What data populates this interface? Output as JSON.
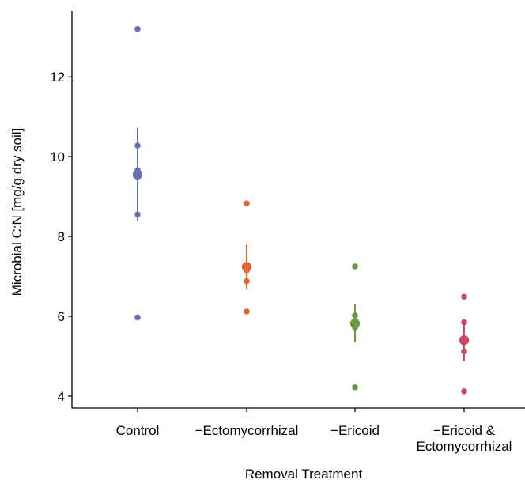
{
  "chart_data": {
    "type": "scatter",
    "xlabel": "Removal Treatment",
    "ylabel": "Microbial C:N [mg/g dry soil]",
    "categories": [
      "Control",
      "−Ectomycorrhizal",
      "−Ericoid",
      "−Ericoid &\nEctomycorrhizal"
    ],
    "yticks": [
      4,
      6,
      8,
      10,
      12
    ],
    "ylim": [
      3.7,
      13.65
    ],
    "grid": false,
    "legend": "none",
    "colors": [
      "#6470bc",
      "#e06633",
      "#6a9a44",
      "#c84a66"
    ],
    "series": [
      {
        "category": "Control",
        "points": [
          13.2,
          10.28,
          9.66,
          9.52,
          8.55,
          5.97
        ],
        "mean": 9.55,
        "error_low": 8.4,
        "error_high": 10.72
      },
      {
        "category": "−Ectomycorrhizal",
        "points": [
          8.83,
          7.25,
          7.15,
          6.88,
          6.12
        ],
        "mean": 7.24,
        "error_low": 6.68,
        "error_high": 7.8
      },
      {
        "category": "−Ericoid",
        "points": [
          7.25,
          6.02,
          5.88,
          5.8,
          5.72,
          4.22
        ],
        "mean": 5.82,
        "error_low": 5.35,
        "error_high": 6.3
      },
      {
        "category": "−Ericoid & Ectomycorrhizal",
        "points": [
          6.49,
          5.85,
          5.12,
          4.12
        ],
        "mean": 5.4,
        "error_low": 4.88,
        "error_high": 5.85
      }
    ]
  }
}
